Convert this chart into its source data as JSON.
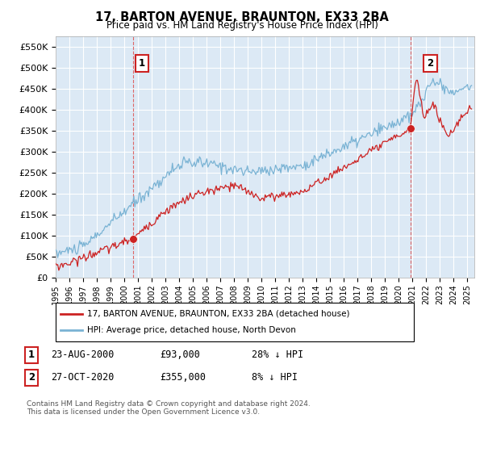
{
  "title": "17, BARTON AVENUE, BRAUNTON, EX33 2BA",
  "subtitle": "Price paid vs. HM Land Registry's House Price Index (HPI)",
  "ylim": [
    0,
    575000
  ],
  "yticks": [
    0,
    50000,
    100000,
    150000,
    200000,
    250000,
    300000,
    350000,
    400000,
    450000,
    500000,
    550000
  ],
  "xlim_start": 1995.0,
  "xlim_end": 2025.5,
  "hpi_color": "#7ab3d4",
  "price_color": "#cc2222",
  "vline_color": "#dd6666",
  "annotation1_date": 2000.65,
  "annotation1_price": 93000,
  "annotation2_date": 2020.83,
  "annotation2_price": 355000,
  "vline1_x": 2000.65,
  "vline2_x": 2020.83,
  "legend_entries": [
    "17, BARTON AVENUE, BRAUNTON, EX33 2BA (detached house)",
    "HPI: Average price, detached house, North Devon"
  ],
  "table_rows": [
    {
      "num": "1",
      "date": "23-AUG-2000",
      "price": "£93,000",
      "hpi": "28% ↓ HPI"
    },
    {
      "num": "2",
      "date": "27-OCT-2020",
      "price": "£355,000",
      "hpi": "8% ↓ HPI"
    }
  ],
  "footnote": "Contains HM Land Registry data © Crown copyright and database right 2024.\nThis data is licensed under the Open Government Licence v3.0.",
  "background_color": "#ffffff",
  "plot_bg_color": "#dce9f5",
  "grid_color": "#ffffff"
}
